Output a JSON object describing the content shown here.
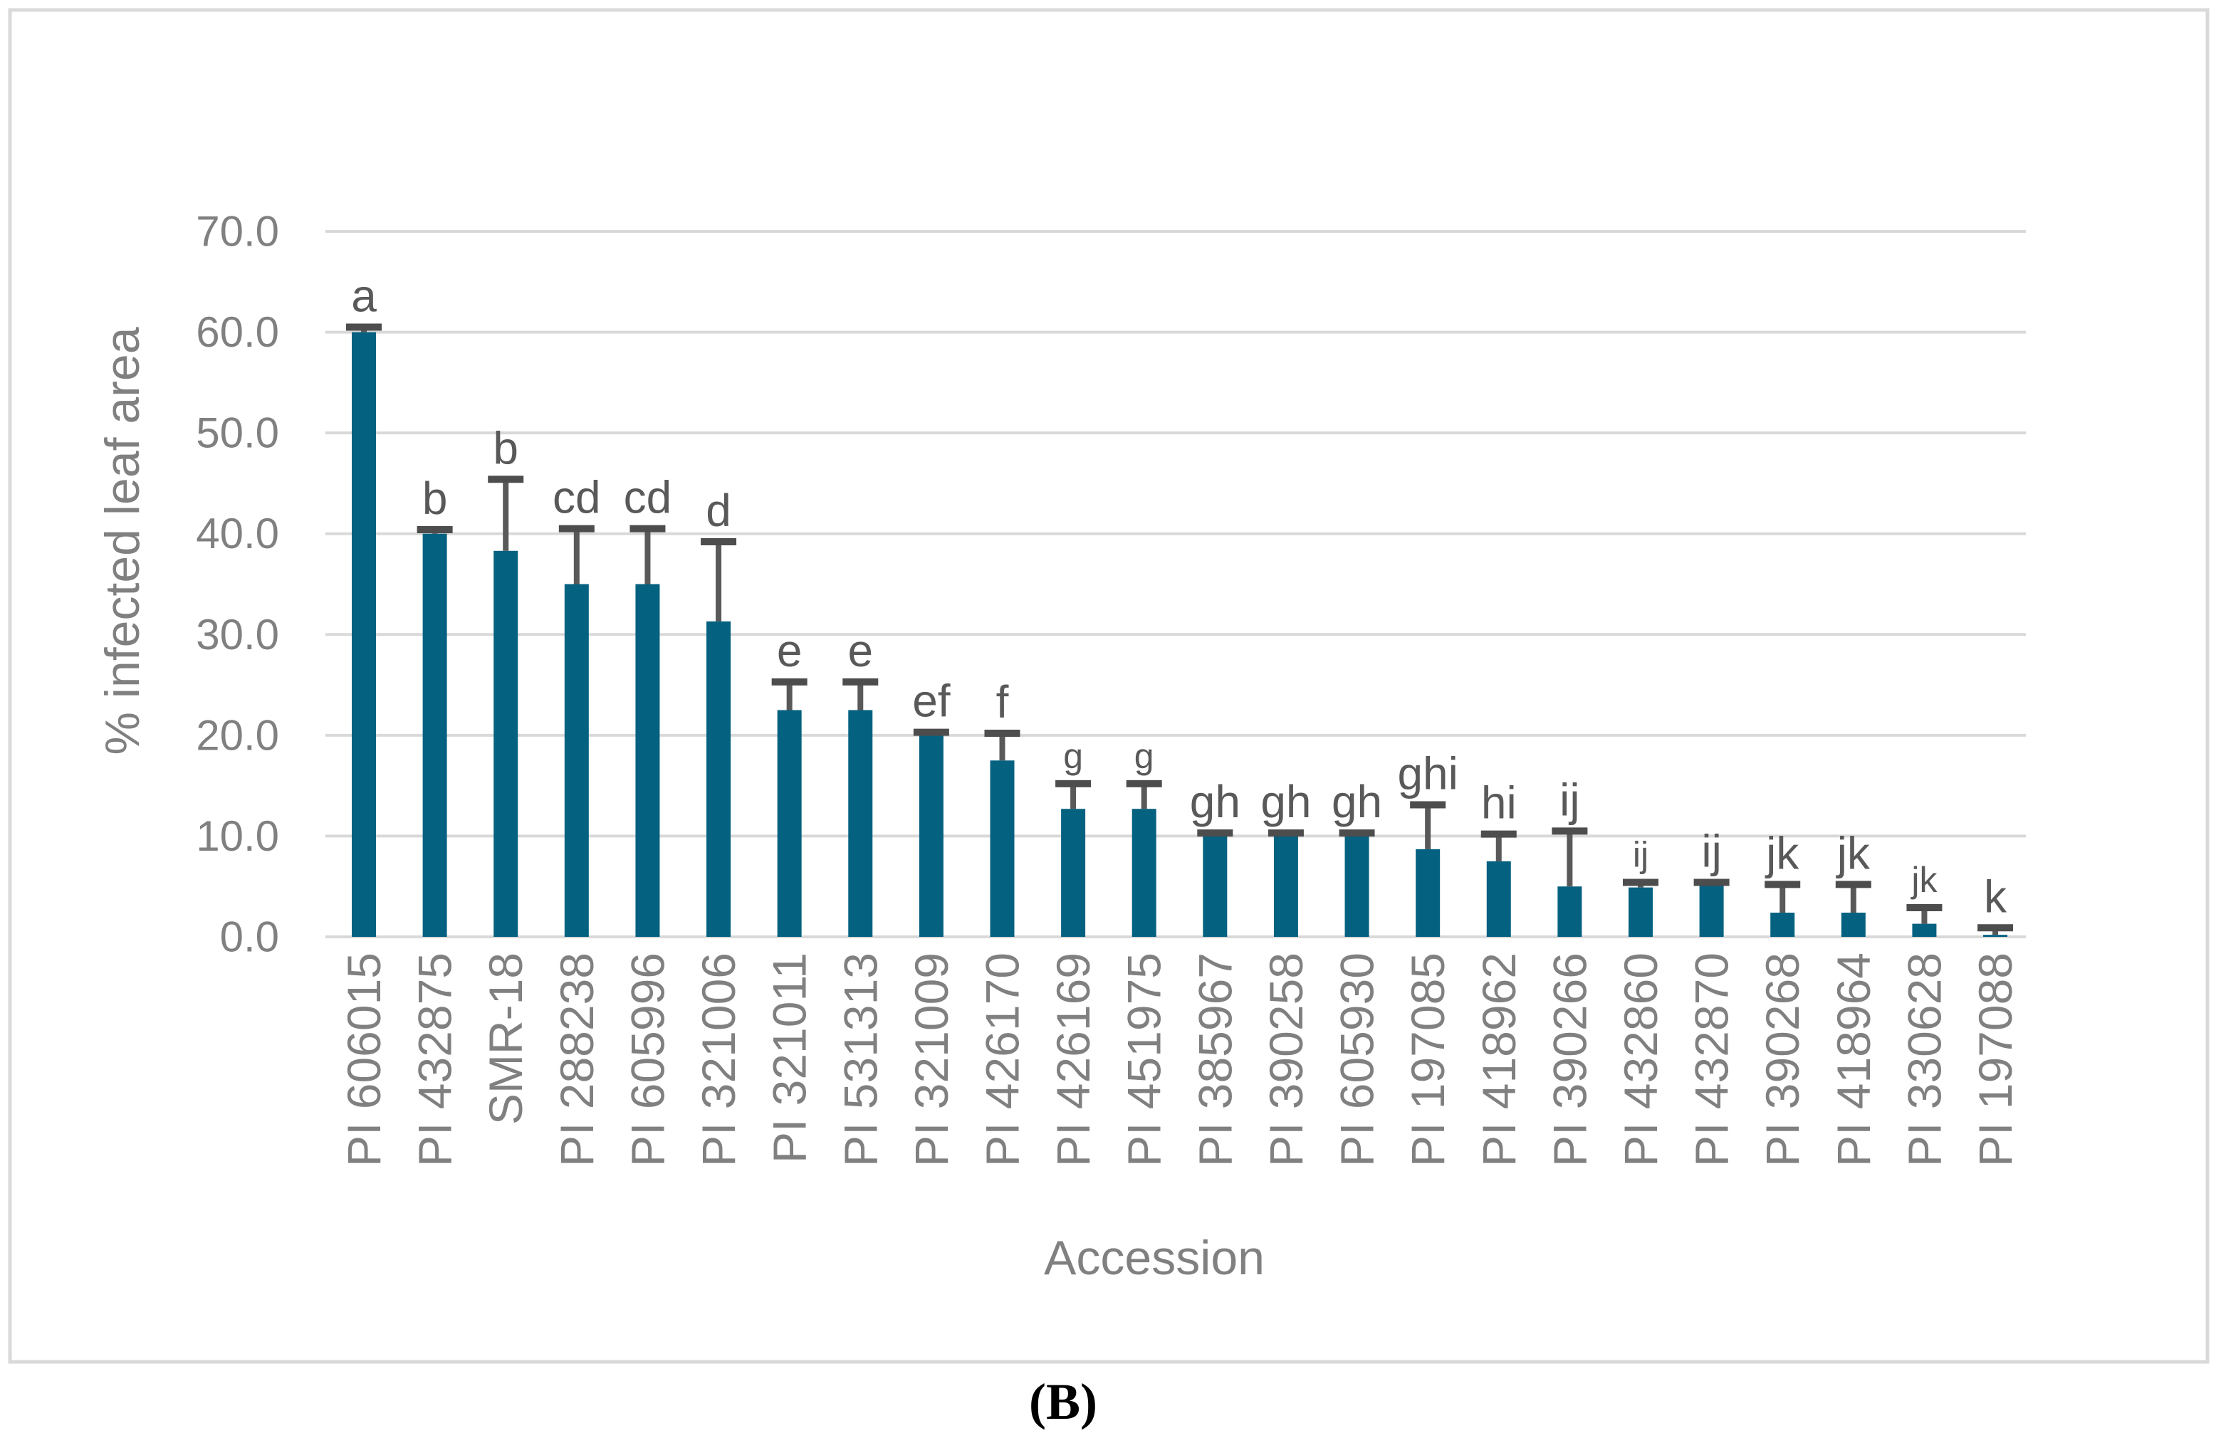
{
  "figure": {
    "panel_label": "(B)",
    "background_color": "#ffffff",
    "border_color": "#d9d9d9"
  },
  "chart_data": {
    "type": "bar",
    "title": "",
    "xlabel": "Accession",
    "ylabel": "% infected leaf area",
    "ylim": [
      0,
      70
    ],
    "ytick_step": 10,
    "ytick_labels": [
      "0.0",
      "10.0",
      "20.0",
      "30.0",
      "40.0",
      "50.0",
      "60.0",
      "70.0"
    ],
    "grid": true,
    "legend": "none",
    "bar_color": "#056180",
    "error_bar_color": "#595959",
    "error_cap_color": "#4d4d4d",
    "gridline_color": "#d9d9d9",
    "axis_text_color": "#808080",
    "letter_color": "#595959",
    "categories": [
      "PI 606015",
      "PI 432875",
      "SMR-18",
      "PI 288238",
      "PI 605996",
      "PI 321006",
      "PI 321011",
      "PI 531313",
      "PI 321009",
      "PI 426170",
      "PI 426169",
      "PI 451975",
      "PI 385967",
      "PI 390258",
      "PI 605930",
      "PI 197085",
      "PI 418962",
      "PI 390266",
      "PI 432860",
      "PI 432870",
      "PI 390268",
      "PI 418964",
      "PI 330628",
      "PI 197088"
    ],
    "values": [
      60.0,
      40.0,
      38.3,
      35.0,
      35.0,
      31.3,
      22.5,
      22.5,
      20.0,
      17.5,
      12.7,
      12.7,
      10.0,
      10.0,
      10.0,
      8.7,
      7.5,
      5.0,
      4.9,
      5.1,
      2.4,
      2.4,
      1.3,
      0.2
    ],
    "error_top": [
      60.5,
      40.4,
      45.4,
      40.5,
      40.5,
      39.2,
      25.3,
      25.3,
      20.3,
      20.2,
      15.2,
      15.2,
      10.3,
      10.3,
      10.3,
      13.1,
      10.2,
      10.5,
      5.4,
      5.4,
      5.2,
      5.2,
      2.9,
      0.9
    ],
    "letters": [
      "a",
      "b",
      "b",
      "cd",
      "cd",
      "d",
      "e",
      "e",
      "ef",
      "f",
      "g",
      "g",
      "gh",
      "gh",
      "gh",
      "ghi",
      "hi",
      "ij",
      "ij",
      "ij",
      "jk",
      "jk",
      "jk",
      "k"
    ],
    "letter_small": [
      false,
      false,
      false,
      false,
      false,
      false,
      false,
      false,
      false,
      false,
      true,
      true,
      false,
      false,
      false,
      false,
      false,
      false,
      true,
      false,
      false,
      false,
      true,
      false
    ]
  }
}
